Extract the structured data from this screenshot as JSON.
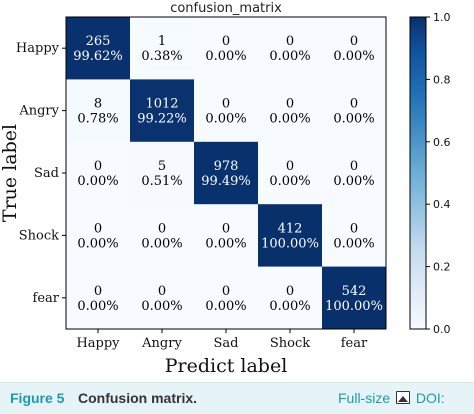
{
  "chart_data": {
    "type": "heatmap",
    "title": "confusion_matrix",
    "xlabel": "Predict label",
    "ylabel": "True label",
    "x_categories": [
      "Happy",
      "Angry",
      "Sad",
      "Shock",
      "fear"
    ],
    "y_categories": [
      "Happy",
      "Angry",
      "Sad",
      "Shock",
      "fear"
    ],
    "counts": [
      [
        265,
        1,
        0,
        0,
        0
      ],
      [
        8,
        1012,
        0,
        0,
        0
      ],
      [
        0,
        5,
        978,
        0,
        0
      ],
      [
        0,
        0,
        0,
        412,
        0
      ],
      [
        0,
        0,
        0,
        0,
        542
      ]
    ],
    "percent_labels": [
      [
        "99.62%",
        "0.38%",
        "0.00%",
        "0.00%",
        "0.00%"
      ],
      [
        "0.78%",
        "99.22%",
        "0.00%",
        "0.00%",
        "0.00%"
      ],
      [
        "0.00%",
        "0.51%",
        "99.49%",
        "0.00%",
        "0.00%"
      ],
      [
        "0.00%",
        "0.00%",
        "0.00%",
        "100.00%",
        "0.00%"
      ],
      [
        "0.00%",
        "0.00%",
        "0.00%",
        "0.00%",
        "100.00%"
      ]
    ],
    "normalized": [
      [
        0.9962,
        0.0038,
        0,
        0,
        0
      ],
      [
        0.0078,
        0.9922,
        0,
        0,
        0
      ],
      [
        0,
        0.0051,
        0.9949,
        0,
        0
      ],
      [
        0,
        0,
        0,
        1.0,
        0
      ],
      [
        0,
        0,
        0,
        0,
        1.0
      ]
    ],
    "colorbar": {
      "range": [
        0,
        1.0
      ],
      "ticks": [
        "0.0",
        "0.2",
        "0.4",
        "0.6",
        "0.8",
        "1.0"
      ],
      "colormap": "Blues",
      "low_color": "#f7fbff",
      "high_color": "#08306b"
    }
  },
  "caption": {
    "figure_label": "Figure 5",
    "title": "Confusion matrix.",
    "fullsize_label": "Full-size",
    "doi_label": "DOI:"
  }
}
